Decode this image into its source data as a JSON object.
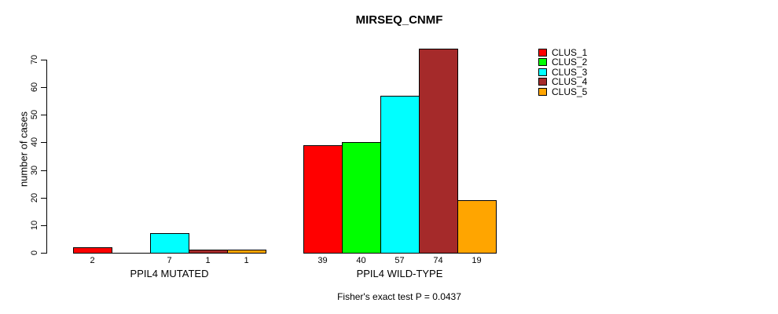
{
  "title": "MIRSEQ_CNMF",
  "chart_data": {
    "type": "bar",
    "title": "MIRSEQ_CNMF",
    "xlabel": "",
    "ylabel": "number of cases",
    "ylim": [
      0,
      70
    ],
    "yticks": [
      0,
      10,
      20,
      30,
      40,
      50,
      60,
      70
    ],
    "grid": false,
    "legend_position": "right",
    "categories": [
      "PPIL4 MUTATED",
      "PPIL4 WILD-TYPE"
    ],
    "series": [
      {
        "name": "CLUS_1",
        "color": "#ff0000",
        "values": [
          2,
          39
        ]
      },
      {
        "name": "CLUS_2",
        "color": "#00ff00",
        "values": [
          0,
          40
        ]
      },
      {
        "name": "CLUS_3",
        "color": "#00ffff",
        "values": [
          7,
          57
        ]
      },
      {
        "name": "CLUS_4",
        "color": "#a52a2a",
        "values": [
          1,
          74
        ]
      },
      {
        "name": "CLUS_5",
        "color": "#ffa500",
        "values": [
          1,
          19
        ]
      }
    ],
    "bar_value_labels": [
      [
        "2",
        "",
        "7",
        "1",
        "1"
      ],
      [
        "39",
        "40",
        "57",
        "74",
        "19"
      ]
    ],
    "annotation": "Fisher's exact test P = 0.0437"
  },
  "legend": {
    "items": [
      {
        "label": "CLUS_1",
        "color": "#ff0000"
      },
      {
        "label": "CLUS_2",
        "color": "#00ff00"
      },
      {
        "label": "CLUS_3",
        "color": "#00ffff"
      },
      {
        "label": "CLUS_4",
        "color": "#a52a2a"
      },
      {
        "label": "CLUS_5",
        "color": "#ffa500"
      }
    ]
  }
}
